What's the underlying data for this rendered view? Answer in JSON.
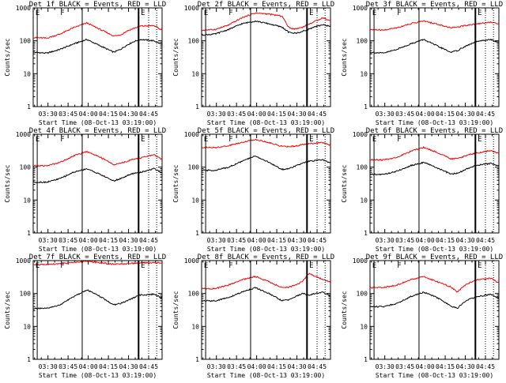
{
  "colors": {
    "events": "#000000",
    "lld": "#ff0000",
    "marker": "#000000"
  },
  "chart_data": [
    {
      "type": "line",
      "title": "Det 1f BLACK = Events, RED = LLD",
      "xlabel": "Start Time (08-Oct-13 03:19:00)",
      "ylabel": "Counts/sec",
      "xticks": [
        "03:30",
        "03:45",
        "04:00",
        "04:15",
        "04:30",
        "04:45"
      ],
      "yticks": [
        "1",
        "10",
        "100",
        "1000"
      ],
      "ylim": [
        1,
        1000
      ],
      "yscale": "log",
      "flags": [
        "E",
        "F",
        "E"
      ],
      "x_minutes": [
        0,
        10,
        20,
        30,
        40,
        50,
        60,
        65,
        70,
        75,
        80,
        90,
        95
      ],
      "series": [
        {
          "name": "Events",
          "color": "#000000",
          "values": [
            45,
            42,
            55,
            80,
            110,
            70,
            45,
            55,
            75,
            95,
            110,
            100,
            80
          ]
        },
        {
          "name": "LLD",
          "color": "#ff0000",
          "values": [
            125,
            120,
            160,
            250,
            350,
            220,
            140,
            150,
            200,
            240,
            280,
            290,
            220
          ]
        }
      ]
    },
    {
      "type": "line",
      "title": "Det 2f BLACK = Events, RED = LLD",
      "xlabel": "Start Time (08-Oct-13 03:19:00)",
      "ylabel": "Counts/sec",
      "xticks": [
        "03:30",
        "03:45",
        "04:00",
        "04:15",
        "04:30",
        "04:45"
      ],
      "yticks": [
        "1",
        "10",
        "100",
        "1000"
      ],
      "ylim": [
        1,
        1000
      ],
      "yscale": "log",
      "flags": [
        "E",
        "F",
        "E"
      ],
      "x_minutes": [
        0,
        10,
        20,
        30,
        40,
        50,
        60,
        65,
        70,
        75,
        80,
        90,
        95
      ],
      "series": [
        {
          "name": "Events",
          "color": "#000000",
          "values": [
            150,
            160,
            220,
            330,
            400,
            330,
            260,
            180,
            170,
            190,
            230,
            310,
            280
          ]
        },
        {
          "name": "LLD",
          "color": "#ff0000",
          "values": [
            210,
            220,
            300,
            500,
            700,
            650,
            560,
            250,
            230,
            260,
            320,
            500,
            420
          ]
        }
      ]
    },
    {
      "type": "line",
      "title": "Det 3f BLACK = Events, RED = LLD",
      "xlabel": "Start Time (08-Oct-13 03:19:00)",
      "ylabel": "Counts/sec",
      "xticks": [
        "03:30",
        "03:45",
        "04:00",
        "04:15",
        "04:30",
        "04:45"
      ],
      "yticks": [
        "1",
        "10",
        "100",
        "1000"
      ],
      "ylim": [
        1,
        1000
      ],
      "yscale": "log",
      "flags": [
        "E",
        "F",
        "E"
      ],
      "x_minutes": [
        0,
        10,
        20,
        30,
        40,
        50,
        60,
        65,
        70,
        75,
        80,
        90,
        95
      ],
      "series": [
        {
          "name": "Events",
          "color": "#000000",
          "values": [
            45,
            42,
            55,
            80,
            110,
            70,
            45,
            50,
            65,
            80,
            95,
            110,
            90
          ]
        },
        {
          "name": "LLD",
          "color": "#ff0000",
          "values": [
            220,
            210,
            250,
            330,
            400,
            320,
            250,
            260,
            290,
            310,
            330,
            370,
            330
          ]
        }
      ]
    },
    {
      "type": "line",
      "title": "Det 4f BLACK = Events, RED = LLD",
      "xlabel": "Start Time (08-Oct-13 03:19:00)",
      "ylabel": "Counts/sec",
      "xticks": [
        "03:30",
        "03:45",
        "04:00",
        "04:15",
        "04:30",
        "04:45"
      ],
      "yticks": [
        "1",
        "10",
        "100",
        "1000"
      ],
      "ylim": [
        1,
        1000
      ],
      "yscale": "log",
      "flags": [
        "E",
        "F",
        "E"
      ],
      "x_minutes": [
        0,
        10,
        20,
        30,
        40,
        50,
        60,
        65,
        70,
        75,
        80,
        90,
        95
      ],
      "series": [
        {
          "name": "Events",
          "color": "#000000",
          "values": [
            35,
            35,
            45,
            70,
            90,
            60,
            38,
            45,
            55,
            65,
            70,
            90,
            70
          ]
        },
        {
          "name": "LLD",
          "color": "#ff0000",
          "values": [
            110,
            110,
            140,
            220,
            300,
            200,
            120,
            130,
            150,
            180,
            190,
            240,
            180
          ]
        }
      ]
    },
    {
      "type": "line",
      "title": "Det 5f BLACK = Events, RED = LLD",
      "xlabel": "Start Time (08-Oct-13 03:19:00)",
      "ylabel": "Counts/sec",
      "xticks": [
        "03:30",
        "03:45",
        "04:00",
        "04:15",
        "04:30",
        "04:45"
      ],
      "yticks": [
        "1",
        "10",
        "100",
        "1000"
      ],
      "ylim": [
        1,
        1000
      ],
      "yscale": "log",
      "flags": [
        "E",
        "F",
        "E"
      ],
      "x_minutes": [
        0,
        10,
        20,
        30,
        40,
        50,
        60,
        65,
        70,
        75,
        80,
        90,
        95
      ],
      "series": [
        {
          "name": "Events",
          "color": "#000000",
          "values": [
            80,
            80,
            100,
            150,
            220,
            140,
            85,
            90,
            110,
            130,
            150,
            170,
            140
          ]
        },
        {
          "name": "LLD",
          "color": "#ff0000",
          "values": [
            400,
            390,
            450,
            570,
            700,
            560,
            430,
            420,
            440,
            480,
            520,
            560,
            480
          ]
        }
      ]
    },
    {
      "type": "line",
      "title": "Det 6f BLACK = Events, RED = LLD",
      "xlabel": "Start Time (08-Oct-13 03:19:00)",
      "ylabel": "Counts/sec",
      "xticks": [
        "03:30",
        "03:45",
        "04:00",
        "04:15",
        "04:30",
        "04:45"
      ],
      "yticks": [
        "1",
        "10",
        "100",
        "1000"
      ],
      "ylim": [
        1,
        1000
      ],
      "yscale": "log",
      "flags": [
        "E",
        "F",
        "E"
      ],
      "x_minutes": [
        0,
        10,
        20,
        30,
        40,
        50,
        60,
        65,
        70,
        75,
        80,
        90,
        95
      ],
      "series": [
        {
          "name": "Events",
          "color": "#000000",
          "values": [
            60,
            60,
            75,
            110,
            140,
            95,
            62,
            65,
            80,
            100,
            115,
            130,
            110
          ]
        },
        {
          "name": "LLD",
          "color": "#ff0000",
          "values": [
            170,
            165,
            200,
            300,
            400,
            280,
            180,
            185,
            210,
            250,
            270,
            320,
            270
          ]
        }
      ]
    },
    {
      "type": "line",
      "title": "Det 7f BLACK = Events, RED = LLD",
      "xlabel": "Start Time (08-Oct-13 03:19:00)",
      "ylabel": "Counts/sec",
      "xticks": [
        "03:30",
        "03:45",
        "04:00",
        "04:15",
        "04:30",
        "04:45"
      ],
      "yticks": [
        "1",
        "10",
        "100",
        "1000"
      ],
      "ylim": [
        1,
        1000
      ],
      "yscale": "log",
      "flags": [
        "E",
        "F",
        "E"
      ],
      "x_minutes": [
        0,
        10,
        20,
        30,
        40,
        50,
        60,
        65,
        70,
        75,
        80,
        90,
        95
      ],
      "series": [
        {
          "name": "Events",
          "color": "#000000",
          "values": [
            35,
            35,
            45,
            80,
            130,
            80,
            45,
            50,
            60,
            75,
            90,
            95,
            75
          ]
        },
        {
          "name": "LLD",
          "color": "#ff0000",
          "values": [
            750,
            760,
            800,
            870,
            950,
            860,
            780,
            790,
            810,
            830,
            850,
            870,
            840
          ]
        }
      ]
    },
    {
      "type": "line",
      "title": "Det 8f BLACK = Events, RED = LLD",
      "xlabel": "Start Time (08-Oct-13 03:19:00)",
      "ylabel": "Counts/sec",
      "xticks": [
        "03:30",
        "03:45",
        "04:00",
        "04:15",
        "04:30",
        "04:45"
      ],
      "yticks": [
        "1",
        "10",
        "100",
        "1000"
      ],
      "ylim": [
        1,
        1000
      ],
      "yscale": "log",
      "flags": [
        "E",
        "F",
        "E"
      ],
      "x_minutes": [
        0,
        10,
        20,
        30,
        40,
        50,
        60,
        65,
        70,
        75,
        80,
        90,
        95
      ],
      "series": [
        {
          "name": "Events",
          "color": "#000000",
          "values": [
            60,
            60,
            75,
            110,
            150,
            100,
            60,
            65,
            80,
            100,
            90,
            110,
            90
          ]
        },
        {
          "name": "LLD",
          "color": "#ff0000",
          "values": [
            140,
            140,
            180,
            260,
            330,
            230,
            150,
            155,
            180,
            230,
            400,
            270,
            230
          ]
        }
      ]
    },
    {
      "type": "line",
      "title": "Det 9f BLACK = Events, RED = LLD",
      "xlabel": "Start Time (08-Oct-13 03:19:00)",
      "ylabel": "Counts/sec",
      "xticks": [
        "03:30",
        "03:45",
        "04:00",
        "04:15",
        "04:30",
        "04:45"
      ],
      "yticks": [
        "1",
        "10",
        "100",
        "1000"
      ],
      "ylim": [
        1,
        1000
      ],
      "yscale": "log",
      "flags": [
        "E",
        "F",
        "E"
      ],
      "x_minutes": [
        0,
        10,
        20,
        30,
        40,
        50,
        60,
        65,
        70,
        75,
        80,
        90,
        95
      ],
      "series": [
        {
          "name": "Events",
          "color": "#000000",
          "values": [
            40,
            40,
            50,
            80,
            110,
            75,
            42,
            35,
            55,
            70,
            80,
            95,
            75
          ]
        },
        {
          "name": "LLD",
          "color": "#ff0000",
          "values": [
            150,
            150,
            180,
            260,
            330,
            230,
            160,
            110,
            170,
            220,
            260,
            290,
            220
          ]
        }
      ]
    }
  ]
}
